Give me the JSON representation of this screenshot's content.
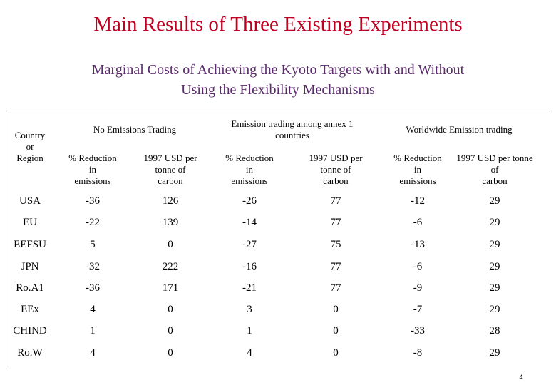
{
  "title": "Main Results of Three Existing Experiments",
  "subtitle_lines": [
    "Marginal Costs of Achieving the Kyoto Targets with and Without",
    "Using the Flexibility Mechanisms"
  ],
  "table": {
    "row_header": [
      "Country",
      "or",
      "Region"
    ],
    "groups": [
      {
        "label": [
          "No Emissions Trading"
        ]
      },
      {
        "label": [
          "Emission trading among annex 1",
          "countries"
        ]
      },
      {
        "label": [
          "Worldwide Emission trading"
        ]
      }
    ],
    "subheaders": [
      [
        "% Reduction",
        "in",
        "emissions"
      ],
      [
        "1997 USD per",
        "tonne of",
        "carbon"
      ],
      [
        "% Reduction",
        "in",
        "emissions"
      ],
      [
        "1997 USD per",
        "tonne of",
        "carbon"
      ],
      [
        "% Reduction",
        "in",
        "emissions"
      ],
      [
        "1997 USD per tonne",
        "of",
        "carbon"
      ]
    ],
    "rows": [
      {
        "region": "USA",
        "values": [
          "-36",
          "126",
          "-26",
          "77",
          "-12",
          "29"
        ]
      },
      {
        "region": "EU",
        "values": [
          "-22",
          "139",
          "-14",
          "77",
          "-6",
          "29"
        ]
      },
      {
        "region": "EEFSU",
        "values": [
          "5",
          "0",
          "-27",
          "75",
          "-13",
          "29"
        ]
      },
      {
        "region": "JPN",
        "values": [
          "-32",
          "222",
          "-16",
          "77",
          "-6",
          "29"
        ]
      },
      {
        "region": "Ro.A1",
        "values": [
          "-36",
          "171",
          "-21",
          "77",
          "-9",
          "29"
        ]
      },
      {
        "region": "EEx",
        "values": [
          "4",
          "0",
          "3",
          "0",
          "-7",
          "29"
        ]
      },
      {
        "region": "CHIND",
        "values": [
          "1",
          "0",
          "1",
          "0",
          "-33",
          "28"
        ]
      },
      {
        "region": "Ro.W",
        "values": [
          "4",
          "0",
          "4",
          "0",
          "-8",
          "29"
        ]
      }
    ]
  },
  "page_number": "4",
  "colors": {
    "title": "#c00020",
    "subtitle": "#5c2a6e"
  }
}
